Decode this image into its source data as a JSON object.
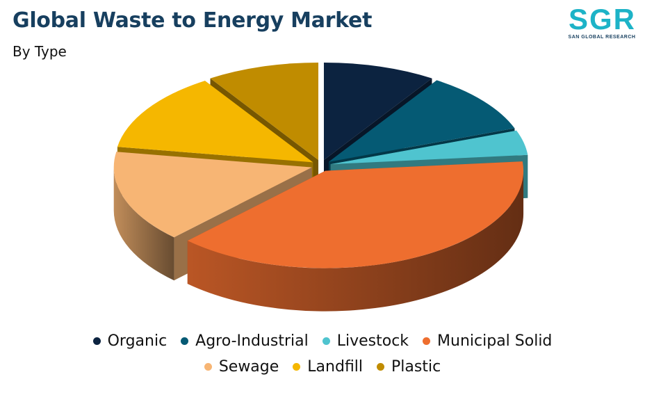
{
  "header": {
    "title": "Global Waste to Energy Market",
    "subtitle": "By Type"
  },
  "logo": {
    "mark": "SGR",
    "tagline": "SAN GLOBAL RESEARCH"
  },
  "chart_data": {
    "type": "pie",
    "style": "3d-exploded",
    "categories": [
      "Organic",
      "Agro-Industrial",
      "Livestock",
      "Municipal Solid",
      "Sewage",
      "Landfill",
      "Plastic"
    ],
    "values": [
      9,
      10,
      4,
      38,
      15,
      13,
      9
    ],
    "colors": [
      "#0c2340",
      "#055a74",
      "#4fc4cf",
      "#ee6e2f",
      "#f7b574",
      "#f5b700",
      "#c08c00"
    ],
    "legend_position": "bottom"
  }
}
